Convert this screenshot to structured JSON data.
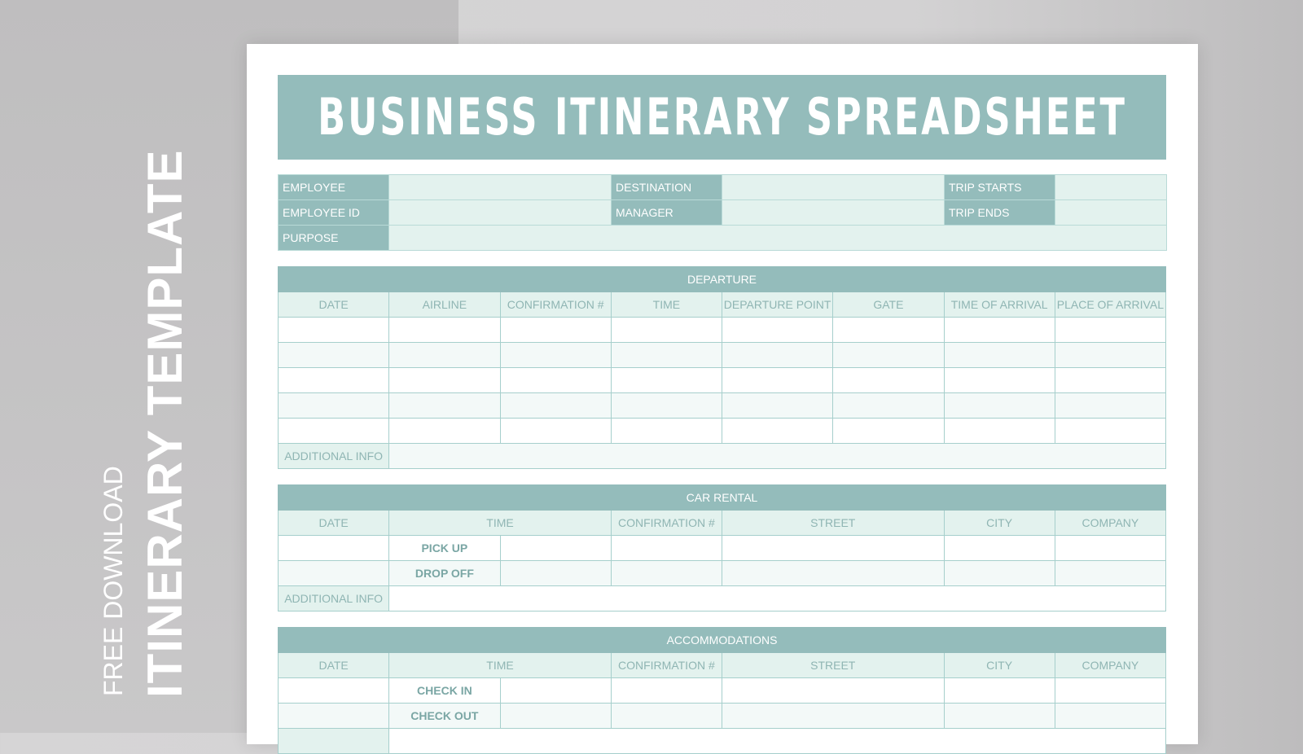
{
  "side": {
    "free": "FREE DOWNLOAD",
    "title": "ITINERARY TEMPLATE"
  },
  "title": "BUSINESS ITINERARY SPREADSHEET",
  "info": {
    "employee": "EMPLOYEE",
    "destination": "DESTINATION",
    "trip_starts": "TRIP STARTS",
    "employee_id": "EMPLOYEE ID",
    "manager": "MANAGER",
    "trip_ends": "TRIP ENDS",
    "purpose": "PURPOSE"
  },
  "departure": {
    "title": "DEPARTURE",
    "columns": [
      "DATE",
      "AIRLINE",
      "CONFIRMATION #",
      "TIME",
      "DEPARTURE POINT",
      "GATE",
      "TIME OF ARRIVAL",
      "PLACE OF ARRIVAL"
    ],
    "additional": "ADDITIONAL INFO"
  },
  "car": {
    "title": "CAR RENTAL",
    "columns": [
      "DATE",
      "TIME",
      "CONFIRMATION #",
      "STREET",
      "CITY",
      "COMPANY"
    ],
    "rows": [
      "PICK UP",
      "DROP OFF"
    ],
    "additional": "ADDITIONAL INFO"
  },
  "acc": {
    "title": "ACCOMMODATIONS",
    "columns": [
      "DATE",
      "TIME",
      "CONFIRMATION #",
      "STREET",
      "CITY",
      "COMPANY"
    ],
    "rows": [
      "CHECK IN",
      "CHECK OUT"
    ]
  },
  "colors": {
    "accent": "#94bcbb",
    "light": "#e3f2ee"
  }
}
